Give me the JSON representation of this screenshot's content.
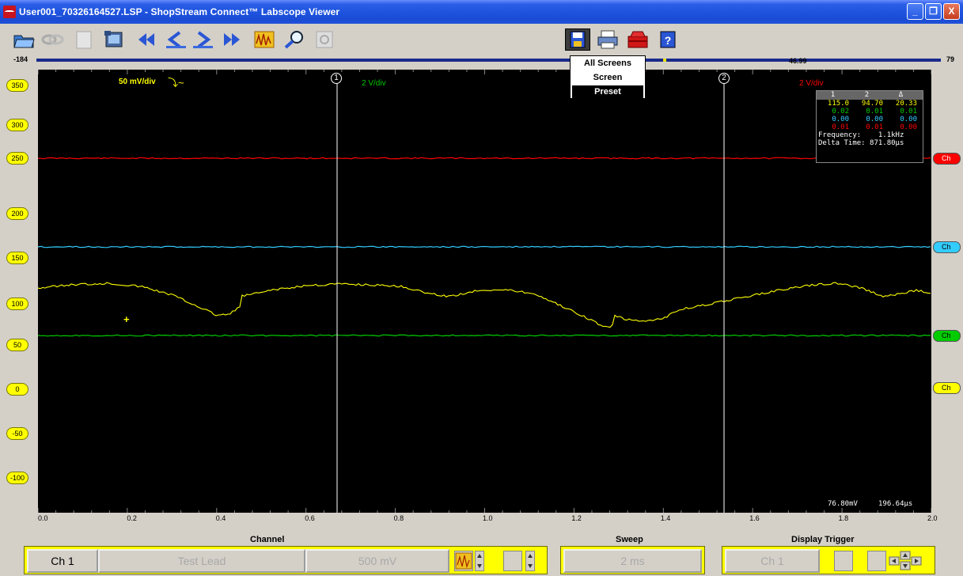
{
  "window": {
    "title": "User001_70326164527.LSP - ShopStream Connect™ Labscope Viewer",
    "minimize_label": "_",
    "restore_label": "❐",
    "close_label": "X"
  },
  "toolbar": {
    "icons": [
      "open-icon",
      "link-icon",
      "blank-page-icon",
      "screen-capture-icon",
      "rewind-icon",
      "step-back-icon",
      "step-forward-icon",
      "fast-forward-icon",
      "waveform-icon",
      "zoom-icon",
      "refresh-icon",
      "save-icon",
      "print-icon",
      "toolbox-icon",
      "help-icon"
    ]
  },
  "scrollbar": {
    "left_value": "-184",
    "mid_value": "46.99",
    "right_value": "79"
  },
  "save_menu": {
    "items": [
      "All Screens",
      "Screen",
      "Preset"
    ],
    "selected": "Preset"
  },
  "scope": {
    "y_labels": [
      "350",
      "300",
      "250",
      "200",
      "150",
      "100",
      "50",
      "0",
      "-50",
      "-100"
    ],
    "x_labels": [
      "0.0",
      "0.2",
      "0.4",
      "0.6",
      "0.8",
      "1.0",
      "1.2",
      "1.4",
      "1.6",
      "1.8",
      "2.0"
    ],
    "scale_ch1": "50 mV/div",
    "scale_ch2": "2 V/div",
    "scale_ch3": "2 V/div",
    "cursor1_label": "1",
    "cursor2_label": "2",
    "bottom_readout_left": "76.80mV",
    "bottom_readout_right": "196.64µs",
    "channel_tags": [
      {
        "label": "Ch",
        "color": "#ff0000"
      },
      {
        "label": "Ch",
        "color": "#33ccff"
      },
      {
        "label": "Ch",
        "color": "#00cc00"
      },
      {
        "label": "Ch",
        "color": "#ffff00"
      }
    ],
    "colors": {
      "yellow": "#ffff00",
      "red": "#ff0000",
      "cyan": "#33ccff",
      "green": "#00cc00"
    }
  },
  "readout": {
    "headers": [
      "1",
      "2",
      "Δ"
    ],
    "rows": [
      {
        "values": [
          "115.0",
          "94.70",
          "20.33"
        ],
        "color": "#ffff00"
      },
      {
        "values": [
          "0.02",
          "0.01",
          "0.01"
        ],
        "color": "#00cc00"
      },
      {
        "values": [
          "0.00",
          "0.00",
          "0.00"
        ],
        "color": "#33ccff"
      },
      {
        "values": [
          "0.01",
          "0.01",
          "0.00"
        ],
        "color": "#ff0000"
      }
    ],
    "frequency": "Frequency:    1.1kHz",
    "delta_time": "Delta Time: 871.80µs"
  },
  "bottom": {
    "channel_label": "Channel",
    "sweep_label": "Sweep",
    "display_trigger_label": "Display Trigger",
    "channel_button": "Ch 1",
    "lead_button": "Test Lead",
    "scale_button": "500 mV",
    "sweep_button": "2 ms",
    "trigger_channel_button": "Ch 1"
  }
}
